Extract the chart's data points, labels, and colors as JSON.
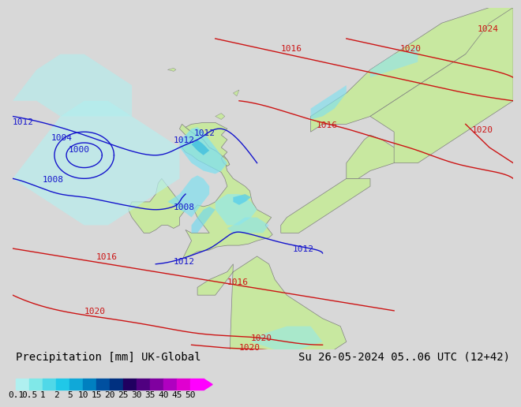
{
  "title_left": "Precipitation [mm] UK-Global",
  "title_right": "Su 26-05-2024 05..06 UTC (12+42)",
  "colorbar_levels": [
    0.1,
    0.5,
    1,
    2,
    5,
    10,
    15,
    20,
    25,
    30,
    35,
    40,
    45,
    50
  ],
  "colorbar_colors": [
    "#b0f0f0",
    "#80e8e8",
    "#50d8e8",
    "#20c8e8",
    "#10a8d8",
    "#0080c0",
    "#0050a0",
    "#003080",
    "#200060",
    "#500080",
    "#8000a0",
    "#b000c0",
    "#e000d0",
    "#ff00ff"
  ],
  "bg_color": "#d8d8d8",
  "land_color": "#c8e8a0",
  "sea_color": "#e8e8e8",
  "border_color": "#808080",
  "blue_color": "#1414cc",
  "red_color": "#cc1414",
  "precip_cyan_light": "#a8f0f0",
  "precip_cyan_med": "#60d8e8",
  "precip_cyan_dark": "#20b8d8",
  "precip_blue": "#2060c0",
  "font_size_title": 10,
  "font_size_isobar": 8,
  "font_size_cbar": 8
}
